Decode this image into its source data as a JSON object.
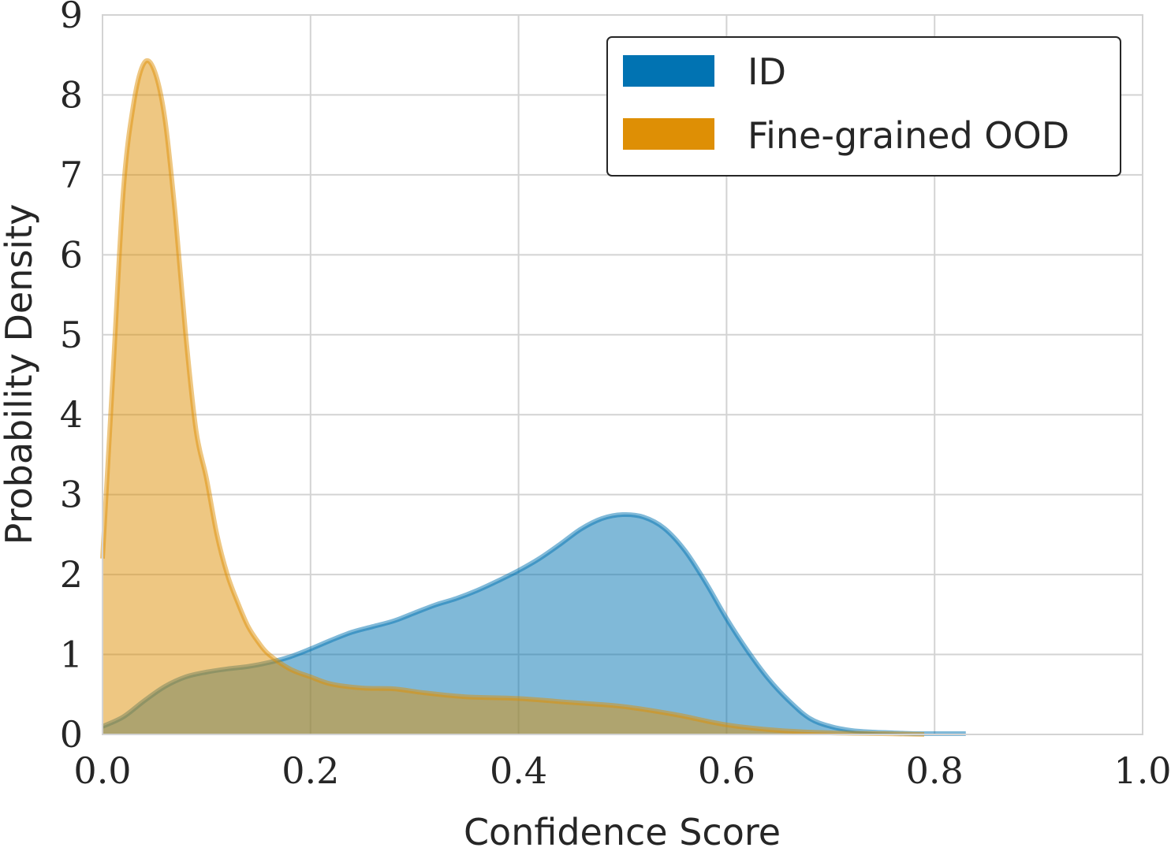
{
  "chart_data": {
    "type": "area",
    "title": "",
    "xlabel": "Confidence Score",
    "ylabel": "Probability Density",
    "xlim": [
      0.0,
      1.0
    ],
    "ylim": [
      0,
      9
    ],
    "xticks": [
      0.0,
      0.2,
      0.4,
      0.6,
      0.8,
      1.0
    ],
    "xtick_labels": [
      "0.0",
      "0.2",
      "0.4",
      "0.6",
      "0.8",
      "1.0"
    ],
    "yticks": [
      0,
      1,
      2,
      3,
      4,
      5,
      6,
      7,
      8,
      9
    ],
    "ytick_labels": [
      "0",
      "1",
      "2",
      "3",
      "4",
      "5",
      "6",
      "7",
      "8",
      "9"
    ],
    "grid": true,
    "legend_position": "top-right",
    "series": [
      {
        "name": "ID",
        "color": "#0173b2",
        "x": [
          0.0,
          0.02,
          0.04,
          0.06,
          0.08,
          0.1,
          0.12,
          0.14,
          0.16,
          0.18,
          0.2,
          0.22,
          0.24,
          0.26,
          0.28,
          0.3,
          0.32,
          0.34,
          0.36,
          0.38,
          0.4,
          0.42,
          0.44,
          0.46,
          0.48,
          0.5,
          0.52,
          0.54,
          0.56,
          0.58,
          0.6,
          0.62,
          0.64,
          0.66,
          0.68,
          0.7,
          0.72,
          0.74,
          0.76,
          0.78,
          0.8,
          0.83
        ],
        "values": [
          0.1,
          0.22,
          0.42,
          0.6,
          0.72,
          0.78,
          0.82,
          0.85,
          0.9,
          0.97,
          1.07,
          1.18,
          1.28,
          1.35,
          1.42,
          1.52,
          1.62,
          1.7,
          1.8,
          1.92,
          2.05,
          2.2,
          2.38,
          2.57,
          2.7,
          2.75,
          2.72,
          2.58,
          2.3,
          1.9,
          1.45,
          1.05,
          0.7,
          0.42,
          0.2,
          0.1,
          0.05,
          0.03,
          0.02,
          0.01,
          0.01,
          0.01
        ]
      },
      {
        "name": "Fine-grained OOD",
        "color": "#de8f05",
        "x": [
          0.0,
          0.01,
          0.02,
          0.03,
          0.04,
          0.05,
          0.06,
          0.07,
          0.08,
          0.09,
          0.1,
          0.11,
          0.12,
          0.13,
          0.14,
          0.15,
          0.16,
          0.18,
          0.2,
          0.22,
          0.25,
          0.28,
          0.31,
          0.35,
          0.4,
          0.45,
          0.5,
          0.55,
          0.6,
          0.65,
          0.7,
          0.75,
          0.79
        ],
        "values": [
          2.2,
          4.5,
          6.8,
          7.9,
          8.4,
          8.3,
          7.7,
          6.5,
          5.0,
          3.8,
          3.2,
          2.5,
          2.0,
          1.65,
          1.35,
          1.15,
          1.0,
          0.82,
          0.72,
          0.63,
          0.58,
          0.57,
          0.52,
          0.47,
          0.45,
          0.4,
          0.35,
          0.25,
          0.12,
          0.05,
          0.02,
          0.01,
          0.0
        ]
      }
    ]
  }
}
